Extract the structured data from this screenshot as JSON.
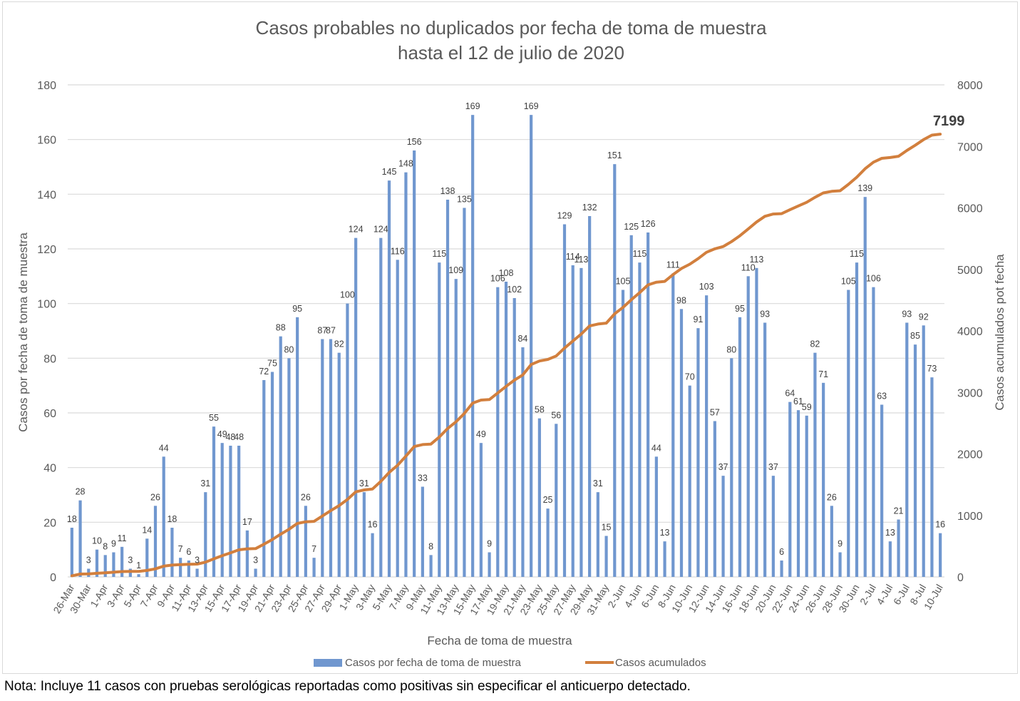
{
  "chart_data": {
    "type": "bar+line",
    "title": [
      "Casos probables no duplicados por fecha de toma de muestra",
      "hasta el 12 de julio de 2020"
    ],
    "xlabel": "Fecha de toma de muestra",
    "ylabel": "Casos por fecha de toma de muestra",
    "y2label": "Casos acumulados pot fecha",
    "ylim": [
      0,
      180
    ],
    "y2lim": [
      0,
      8000
    ],
    "yticks": [
      "0",
      "20",
      "40",
      "60",
      "80",
      "100",
      "120",
      "140",
      "160",
      "180"
    ],
    "y2ticks": [
      "0",
      "1000",
      "2000",
      "3000",
      "4000",
      "5000",
      "6000",
      "7000",
      "8000"
    ],
    "grid": true,
    "legend_position": "bottom",
    "x_tick_labels": [
      "26-Mar",
      "30-Mar",
      "1-Apr",
      "3-Apr",
      "5-Apr",
      "7-Apr",
      "9-Apr",
      "11-Apr",
      "13-Apr",
      "15-Apr",
      "17-Apr",
      "19-Apr",
      "21-Apr",
      "23-Apr",
      "25-Apr",
      "27-Apr",
      "29-Apr",
      "1-May",
      "3-May",
      "5-May",
      "7-May",
      "9-May",
      "11-May",
      "13-May",
      "15-May",
      "17-May",
      "19-May",
      "21-May",
      "23-May",
      "25-May",
      "27-May",
      "29-May",
      "31-May",
      "2-Jun",
      "4-Jun",
      "6-Jun",
      "8-Jun",
      "10-Jun",
      "12-Jun",
      "14-Jun",
      "16-Jun",
      "18-Jun",
      "20-Jun",
      "22-Jun",
      "24-Jun",
      "26-Jun",
      "28-Jun",
      "30-Jun",
      "2-Jul",
      "4-Jul",
      "6-Jul",
      "8-Jul",
      "10-Jul"
    ],
    "x_tick_every": 2,
    "series": [
      {
        "name": "Casos por fecha de toma de muestra",
        "type": "bar",
        "axis": "left",
        "color": "#7097cf",
        "values": [
          18,
          28,
          3,
          10,
          8,
          9,
          11,
          3,
          1,
          14,
          26,
          44,
          18,
          7,
          6,
          3,
          31,
          55,
          49,
          48,
          48,
          17,
          3,
          72,
          75,
          88,
          80,
          95,
          26,
          7,
          87,
          87,
          82,
          100,
          124,
          31,
          16,
          124,
          145,
          116,
          148,
          156,
          33,
          8,
          115,
          138,
          109,
          135,
          169,
          49,
          9,
          106,
          108,
          102,
          84,
          169,
          58,
          25,
          56,
          129,
          114,
          113,
          132,
          31,
          15,
          151,
          105,
          125,
          115,
          126,
          44,
          13,
          111,
          98,
          70,
          91,
          103,
          57,
          37,
          80,
          95,
          110,
          113,
          93,
          37,
          6,
          64,
          61,
          59,
          82,
          71,
          26,
          9,
          105,
          115,
          139,
          106,
          63,
          13,
          21,
          93,
          85,
          92,
          73,
          16
        ]
      },
      {
        "name": "Casos acumulados",
        "type": "line",
        "axis": "right",
        "color": "#d27f3d",
        "cumulative_of": "Casos por fecha de toma de muestra",
        "final_value": 7199,
        "final_label": "7199"
      }
    ]
  },
  "note": "Nota: Incluye 11 casos con pruebas serológicas reportadas como positivas sin especificar el anticuerpo detectado."
}
